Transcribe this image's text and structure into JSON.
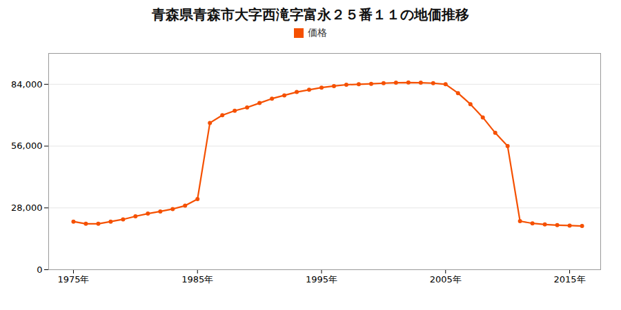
{
  "chart_data": {
    "type": "line",
    "title": "青森県青森市大字西滝字富永２５番１１の地価推移",
    "x": [
      1975,
      1976,
      1977,
      1978,
      1979,
      1980,
      1981,
      1982,
      1983,
      1984,
      1985,
      1986,
      1987,
      1988,
      1989,
      1990,
      1991,
      1992,
      1993,
      1994,
      1995,
      1996,
      1997,
      1998,
      1999,
      2000,
      2001,
      2002,
      2003,
      2004,
      2005,
      2006,
      2007,
      2008,
      2009,
      2010,
      2011,
      2012,
      2013,
      2014,
      2015,
      2016
    ],
    "series": [
      {
        "name": "価格",
        "color": "#f55000",
        "marker": "circle",
        "values": [
          21800,
          20800,
          20800,
          21800,
          22800,
          24200,
          25400,
          26400,
          27500,
          29000,
          32000,
          66500,
          70000,
          72000,
          73500,
          75500,
          77500,
          79000,
          80500,
          81500,
          82500,
          83200,
          83800,
          84000,
          84200,
          84500,
          84700,
          84800,
          84700,
          84500,
          84000,
          80000,
          75000,
          69000,
          62000,
          56000,
          22000,
          21000,
          20500,
          20200,
          20000,
          19800
        ]
      }
    ],
    "xlim": [
      1973,
      2017.5
    ],
    "xticks": [
      {
        "value": 1975,
        "label": "1975年"
      },
      {
        "value": 1985,
        "label": "1985年"
      },
      {
        "value": 1995,
        "label": "1995年"
      },
      {
        "value": 2005,
        "label": "2005年"
      },
      {
        "value": 2015,
        "label": "2015年"
      }
    ],
    "ylim": [
      0,
      98000
    ],
    "yticks": [
      0,
      {
        "value": 28000,
        "label": "28,000"
      },
      {
        "value": 56000,
        "label": "56,000"
      },
      {
        "value": 84000,
        "label": "84,000"
      }
    ],
    "grid": true,
    "legend": "top"
  }
}
